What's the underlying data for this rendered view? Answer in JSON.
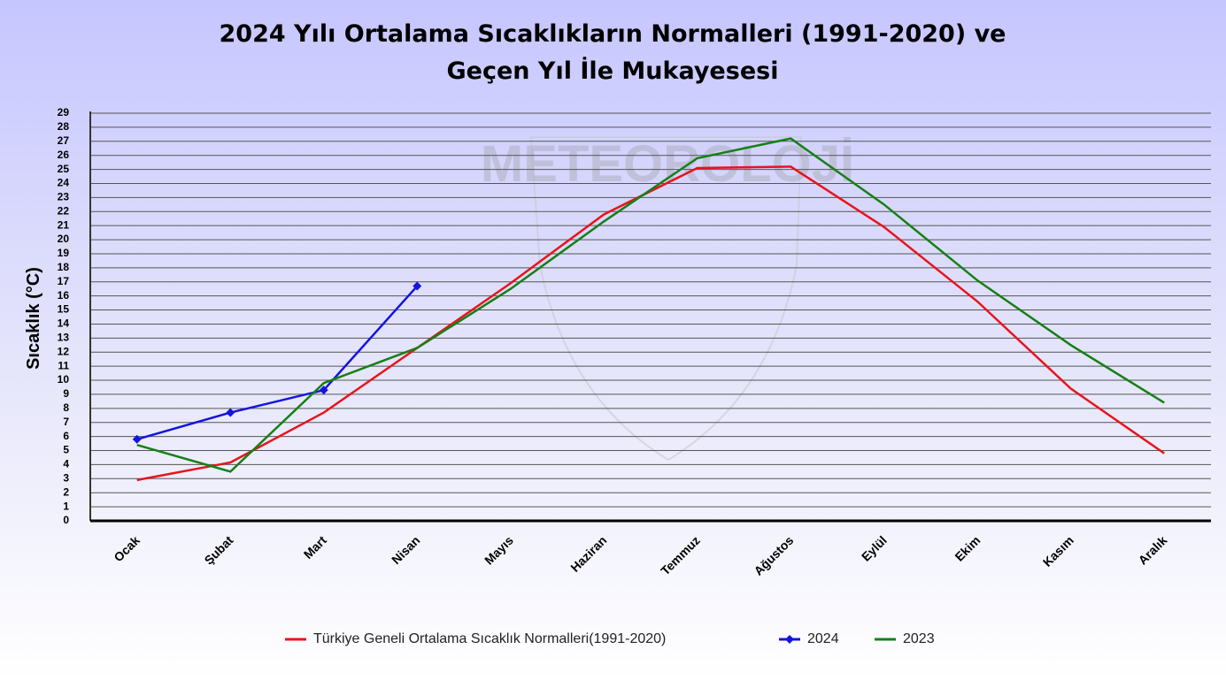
{
  "chart_data": {
    "type": "line",
    "title": [
      "2024 Yılı Ortalama Sıcaklıkların Normalleri (1991-2020) ve",
      "Geçen Yıl İle Mukayesesi"
    ],
    "watermark": "METEOROLOJİ",
    "y_label": "Sıcaklık (°C)",
    "categories": [
      "Ocak",
      "Şubat",
      "Mart",
      "Nisan",
      "Mayıs",
      "Haziran",
      "Temmuz",
      "Ağustos",
      "Eylül",
      "Ekim",
      "Kasım",
      "Aralık"
    ],
    "series": [
      {
        "name": "Türkiye Geneli Ortalama Sıcaklık Normalleri(1991-2020)",
        "color": "#e8141b",
        "marker": false,
        "values": [
          2.9,
          4.15,
          7.7,
          12.3,
          16.9,
          21.8,
          25.1,
          25.2,
          20.9,
          15.6,
          9.4,
          4.8
        ]
      },
      {
        "name": "2024",
        "color": "#1414e0",
        "marker": true,
        "values": [
          5.8,
          7.7,
          9.3,
          16.7,
          null,
          null,
          null,
          null,
          null,
          null,
          null,
          null
        ]
      },
      {
        "name": "2023",
        "color": "#158015",
        "marker": false,
        "values": [
          5.4,
          3.5,
          9.8,
          12.3,
          16.5,
          21.3,
          25.8,
          27.2,
          22.5,
          17.1,
          12.5,
          8.4
        ]
      }
    ],
    "ylim": [
      0,
      29
    ],
    "yticks": [
      0,
      1,
      2,
      3,
      4,
      5,
      6,
      7,
      8,
      9,
      10,
      11,
      12,
      13,
      14,
      15,
      16,
      17,
      18,
      19,
      20,
      21,
      22,
      23,
      24,
      25,
      26,
      27,
      28,
      29
    ],
    "grid": true,
    "legend": "bottom"
  }
}
